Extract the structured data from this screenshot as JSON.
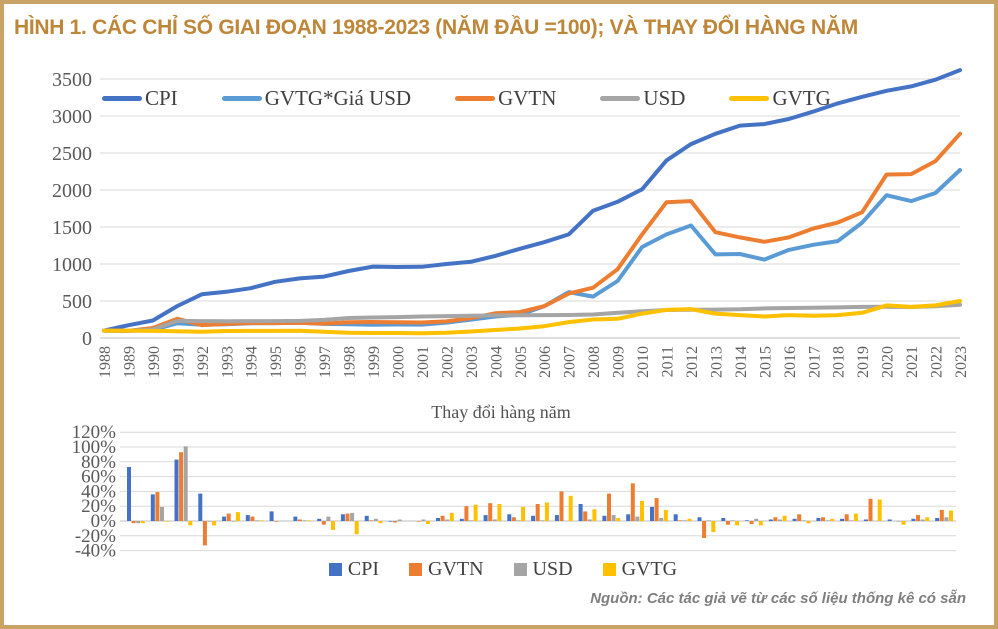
{
  "figure": {
    "title": "HÌNH 1. CÁC CHỈ SỐ GIAI ĐOẠN 1988-2023 (NĂM ĐẦU =100); VÀ THAY ĐỔI HÀNG NĂM",
    "source": "Nguồn: Các tác giả vẽ từ các số liệu thống kê có sẵn"
  },
  "colors": {
    "cpi": "#4472c4",
    "gvtg_gia_usd": "#5b9bd5",
    "gvtn": "#ed7d31",
    "usd": "#a5a5a5",
    "gvtg": "#ffc000",
    "title_gold": "#be8638",
    "frame_tan": "#c9a265",
    "gridline": "#d9d9d9",
    "axis_text": "#595959"
  },
  "chart_data": [
    {
      "type": "line",
      "title": "",
      "legend_position": "top-inside",
      "grid": "horizontal",
      "ylim": [
        0,
        3500
      ],
      "yticks": [
        0,
        500,
        1000,
        1500,
        2000,
        2500,
        3000,
        3500
      ],
      "x": [
        "1988",
        "1989",
        "1990",
        "1991",
        "1992",
        "1993",
        "1994",
        "1995",
        "1996",
        "1997",
        "1998",
        "1999",
        "2000",
        "2001",
        "2002",
        "2003",
        "2004",
        "2005",
        "2006",
        "2007",
        "2008",
        "2009",
        "2010",
        "2011",
        "2012",
        "2013",
        "2014",
        "2015",
        "2016",
        "2017",
        "2018",
        "2019",
        "2020",
        "2021",
        "2022",
        "2023"
      ],
      "series": [
        {
          "name": "CPI",
          "color": "#4472c4",
          "values": [
            100,
            173,
            236,
            432,
            590,
            625,
            673,
            760,
            805,
            830,
            905,
            965,
            960,
            962,
            1000,
            1030,
            1110,
            1205,
            1295,
            1400,
            1720,
            1840,
            2010,
            2400,
            2620,
            2760,
            2870,
            2890,
            2960,
            3060,
            3170,
            3260,
            3340,
            3400,
            3490,
            3620
          ]
        },
        {
          "name": "GVTG*Giá USD",
          "color": "#5b9bd5",
          "values": [
            100,
            95,
            110,
            200,
            180,
            186,
            199,
            202,
            205,
            190,
            185,
            180,
            182,
            181,
            208,
            248,
            290,
            315,
            430,
            620,
            560,
            770,
            1230,
            1400,
            1520,
            1130,
            1135,
            1060,
            1190,
            1260,
            1310,
            1560,
            1930,
            1850,
            1960,
            2270
          ]
        },
        {
          "name": "GVTN",
          "color": "#ed7d31",
          "values": [
            100,
            97,
            135,
            260,
            174,
            191,
            203,
            201,
            205,
            195,
            214,
            216,
            212,
            210,
            224,
            269,
            334,
            350,
            430,
            600,
            680,
            930,
            1400,
            1835,
            1850,
            1430,
            1360,
            1300,
            1360,
            1480,
            1560,
            1700,
            2210,
            2215,
            2390,
            2760
          ]
        },
        {
          "name": "USD",
          "color": "#a5a5a5",
          "values": [
            100,
            97,
            115,
            231,
            229,
            226,
            228,
            229,
            231,
            244,
            270,
            277,
            283,
            290,
            296,
            300,
            305,
            308,
            310,
            311,
            318,
            342,
            362,
            378,
            382,
            384,
            388,
            400,
            406,
            410,
            414,
            420,
            422,
            419,
            428,
            448
          ]
        },
        {
          "name": "GVTG",
          "color": "#ffc000",
          "values": [
            100,
            97,
            96,
            90,
            85,
            95,
            96,
            96,
            97,
            85,
            70,
            68,
            68,
            65,
            72,
            88,
            108,
            128,
            160,
            215,
            250,
            260,
            330,
            380,
            390,
            330,
            310,
            290,
            310,
            300,
            310,
            340,
            440,
            420,
            440,
            500
          ]
        }
      ]
    },
    {
      "type": "bar",
      "title": "Thay đổi hàng năm",
      "legend_position": "bottom",
      "grid": "horizontal",
      "ylim": [
        -40,
        120
      ],
      "ytick_labels": [
        "120%",
        "100%",
        "80%",
        "60%",
        "40%",
        "20%",
        "0%",
        "-20%",
        "-40%"
      ],
      "value_format": "percent",
      "categories": [
        "1989",
        "1990",
        "1991",
        "1992",
        "1993",
        "1994",
        "1995",
        "1996",
        "1997",
        "1998",
        "1999",
        "2000",
        "2001",
        "2002",
        "2003",
        "2004",
        "2005",
        "2006",
        "2007",
        "2008",
        "2009",
        "2010",
        "2011",
        "2012",
        "2013",
        "2014",
        "2015",
        "2016",
        "2017",
        "2018",
        "2019",
        "2020",
        "2021",
        "2022",
        "2023"
      ],
      "series": [
        {
          "name": "CPI",
          "color": "#4472c4",
          "values": [
            73,
            36,
            83,
            37,
            6,
            8,
            13,
            6,
            3,
            9,
            7,
            -1,
            0,
            4,
            3,
            8,
            9,
            7,
            8,
            23,
            7,
            9,
            19,
            9,
            5,
            4,
            1,
            2,
            3,
            4,
            3,
            2,
            2,
            3,
            4
          ]
        },
        {
          "name": "GVTN",
          "color": "#ed7d31",
          "values": [
            -3,
            39,
            93,
            -33,
            10,
            6,
            -1,
            2,
            -5,
            10,
            1,
            -2,
            -1,
            7,
            20,
            24,
            5,
            23,
            40,
            13,
            37,
            51,
            31,
            1,
            -23,
            -5,
            -4,
            5,
            9,
            5,
            9,
            30,
            0,
            8,
            15
          ]
        },
        {
          "name": "USD",
          "color": "#a5a5a5",
          "values": [
            -3,
            19,
            101,
            -1,
            -1,
            1,
            0,
            1,
            6,
            11,
            3,
            2,
            2,
            2,
            1,
            2,
            1,
            1,
            0,
            2,
            8,
            6,
            4,
            1,
            1,
            1,
            3,
            2,
            1,
            1,
            1,
            0,
            -1,
            2,
            5
          ]
        },
        {
          "name": "GVTG",
          "color": "#ffc000",
          "values": [
            -3,
            -1,
            -6,
            -6,
            12,
            1,
            0,
            1,
            -12,
            -18,
            -3,
            0,
            -4,
            11,
            22,
            23,
            19,
            25,
            34,
            16,
            4,
            27,
            15,
            3,
            -15,
            -6,
            -6,
            7,
            -3,
            3,
            10,
            29,
            -5,
            5,
            14
          ]
        }
      ]
    }
  ]
}
